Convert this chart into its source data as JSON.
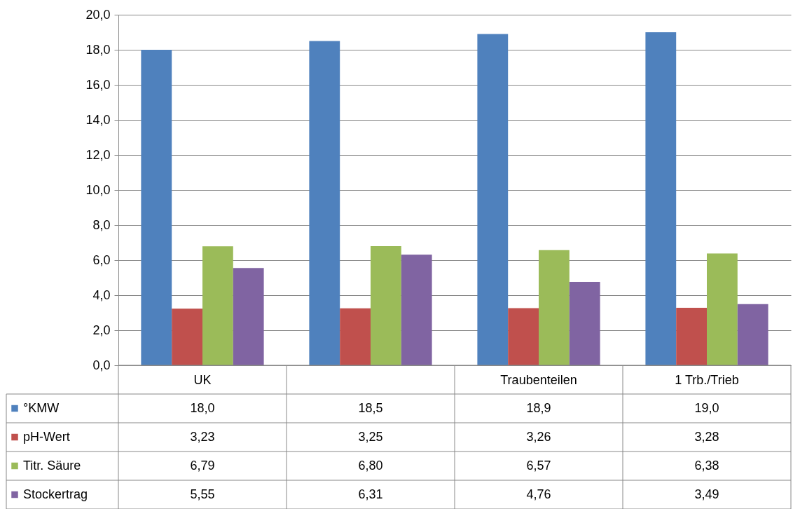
{
  "chart_data": {
    "type": "bar",
    "categories": [
      "UK",
      null,
      "Traubenteilen",
      "1 Trb./Trieb"
    ],
    "series": [
      {
        "name": "°KMW",
        "color": "#4f81bd",
        "values": [
          18.0,
          18.5,
          18.9,
          19.0
        ],
        "value_labels": [
          "18,0",
          "18,5",
          "18,9",
          "19,0"
        ]
      },
      {
        "name": "pH-Wert",
        "color": "#c0504d",
        "values": [
          3.23,
          3.25,
          3.26,
          3.28
        ],
        "value_labels": [
          "3,23",
          "3,25",
          "3,26",
          "3,28"
        ]
      },
      {
        "name": "Titr. Säure",
        "color": "#9bbb59",
        "values": [
          6.79,
          6.8,
          6.57,
          6.38
        ],
        "value_labels": [
          "6,79",
          "6,80",
          "6,57",
          "6,38"
        ]
      },
      {
        "name": "Stockertrag",
        "color": "#8064a2",
        "values": [
          5.55,
          6.31,
          4.76,
          3.49
        ],
        "value_labels": [
          "5,55",
          "6,31",
          "4,76",
          "3,49"
        ]
      }
    ],
    "ylim": [
      0,
      20
    ],
    "yticks": [
      {
        "value": 0,
        "label": "0,0"
      },
      {
        "value": 2,
        "label": "2,0"
      },
      {
        "value": 4,
        "label": "4,0"
      },
      {
        "value": 6,
        "label": "6,0"
      },
      {
        "value": 8,
        "label": "8,0"
      },
      {
        "value": 10,
        "label": "10,0"
      },
      {
        "value": 12,
        "label": "12,0"
      },
      {
        "value": 14,
        "label": "14,0"
      },
      {
        "value": 16,
        "label": "16,0"
      },
      {
        "value": 18,
        "label": "18,0"
      },
      {
        "value": 20,
        "label": "20,0"
      }
    ],
    "grid": "y",
    "legend": "bottom left"
  }
}
